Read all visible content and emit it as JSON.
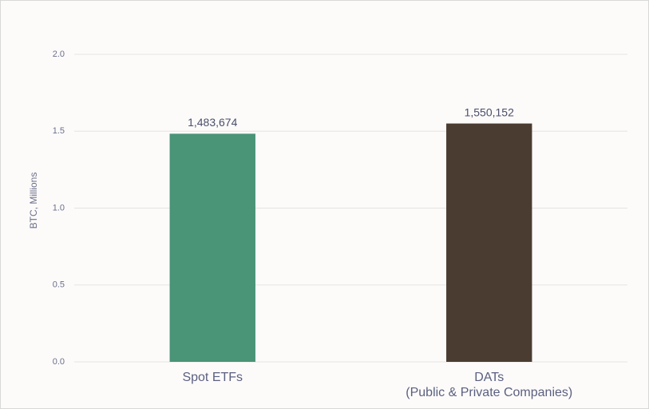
{
  "chart_data": {
    "type": "bar",
    "y_label": "BTC, Millions",
    "categories": [
      "Spot ETFs",
      "DATs\n(Public & Private Companies)"
    ],
    "values": [
      1.483674,
      1.550152
    ],
    "value_labels": [
      "1,483,674",
      "1,550,152"
    ],
    "colors": [
      "#4a9477",
      "#4a3c31"
    ],
    "ylim": [
      0,
      2
    ],
    "yticks": [
      {
        "value": 0,
        "label": "0.0"
      },
      0.5,
      {
        "value": 1,
        "label": "1.0"
      },
      1.5,
      {
        "value": 2,
        "label": "2.0"
      }
    ],
    "grid": true
  }
}
